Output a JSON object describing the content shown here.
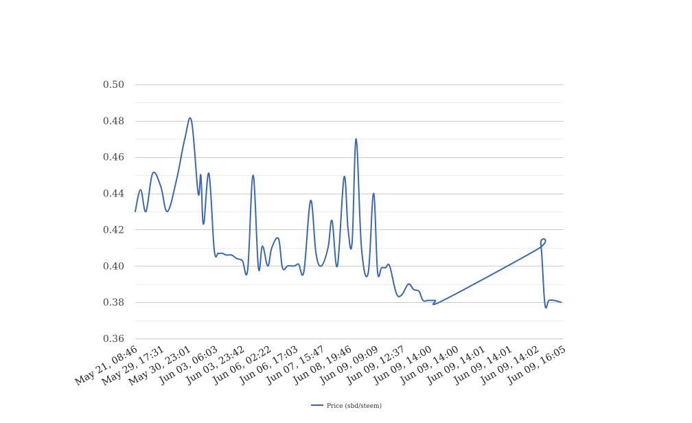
{
  "chart_data": {
    "type": "line",
    "title": "",
    "xlabel": "",
    "ylabel": "",
    "ylim": [
      0.36,
      0.5
    ],
    "y_ticks": [
      "0.36",
      "0.38",
      "0.40",
      "0.42",
      "0.44",
      "0.46",
      "0.48",
      "0.50"
    ],
    "y_tick_values": [
      0.36,
      0.38,
      0.4,
      0.42,
      0.44,
      0.46,
      0.48,
      0.5
    ],
    "minor_grid": true,
    "x_tick_labels": [
      "May 21, 08:46",
      "May 29, 17:31",
      "May 30, 23:01",
      "Jun 03, 06:03",
      "Jun 03, 23:42",
      "Jun 06, 02:22",
      "Jun 06, 17:03",
      "Jun 07, 15:47",
      "Jun 08, 19:46",
      "Jun 09, 09:09",
      "Jun 09, 12:37",
      "Jun 09, 14:00",
      "Jun 09, 14:00",
      "Jun 09, 14:01",
      "Jun 09, 14:01",
      "Jun 09, 14:02",
      "Jun 09, 16:05"
    ],
    "legend_position": "bottom",
    "series": [
      {
        "name": "Price (sbd/steem)",
        "color": "#3a66b7",
        "x": [
          0.0,
          0.2,
          0.4,
          0.65,
          0.95,
          1.2,
          1.55,
          1.85,
          2.1,
          2.35,
          2.45,
          2.55,
          2.75,
          2.95,
          3.1,
          3.25,
          3.4,
          3.6,
          3.8,
          4.0,
          4.2,
          4.4,
          4.6,
          4.75,
          4.95,
          5.1,
          5.35,
          5.5,
          5.7,
          5.95,
          6.1,
          6.3,
          6.55,
          6.75,
          6.95,
          7.2,
          7.35,
          7.55,
          7.8,
          7.95,
          8.1,
          8.25,
          8.45,
          8.7,
          8.9,
          9.05,
          9.2,
          9.35,
          9.5,
          9.75,
          9.95,
          10.2,
          10.4,
          10.6,
          10.75,
          10.95,
          11.2,
          11.5,
          15.0,
          15.15,
          15.3,
          15.45,
          15.65,
          15.9
        ],
        "values": [
          0.43,
          0.442,
          0.43,
          0.451,
          0.444,
          0.43,
          0.448,
          0.47,
          0.48,
          0.44,
          0.45,
          0.423,
          0.451,
          0.409,
          0.407,
          0.407,
          0.406,
          0.406,
          0.404,
          0.403,
          0.398,
          0.45,
          0.399,
          0.411,
          0.4,
          0.41,
          0.415,
          0.399,
          0.4,
          0.4,
          0.401,
          0.397,
          0.436,
          0.407,
          0.4,
          0.41,
          0.425,
          0.4,
          0.449,
          0.42,
          0.413,
          0.47,
          0.41,
          0.396,
          0.44,
          0.397,
          0.399,
          0.399,
          0.4,
          0.385,
          0.384,
          0.39,
          0.387,
          0.386,
          0.381,
          0.381,
          0.381,
          0.381,
          0.409,
          0.412,
          0.379,
          0.381,
          0.381,
          0.38
        ]
      }
    ]
  }
}
